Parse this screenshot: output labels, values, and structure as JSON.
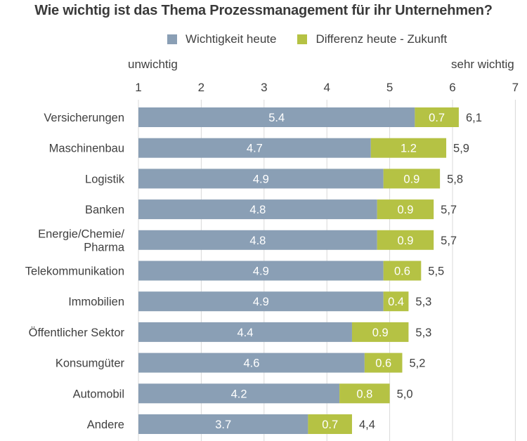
{
  "title": "Wie wichtig ist das Thema Prozessmanagement für ihr Unternehmen?",
  "legend": [
    {
      "label": "Wichtigkeit heute",
      "color": "#8a9fb5"
    },
    {
      "label": "Differenz heute - Zukunft",
      "color": "#b5c244"
    }
  ],
  "axis_end_labels": {
    "left": "unwichtig",
    "right": "sehr wichtig"
  },
  "chart_data": {
    "type": "bar",
    "orientation": "horizontal",
    "stacked": true,
    "title": "Wie wichtig ist das Thema Prozessmanagement für ihr Unternehmen?",
    "xlabel": "",
    "ylabel": "",
    "xlim": [
      1,
      7
    ],
    "xticks": [
      "1",
      "2",
      "3",
      "4",
      "5",
      "6",
      "7"
    ],
    "grid": true,
    "legend_position": "top",
    "categories": [
      "Versicherungen",
      "Maschinenbau",
      "Logistik",
      "Banken",
      "Energie/Chemie/\nPharma",
      "Telekommunikation",
      "Immobilien",
      "Öffentlicher Sektor",
      "Konsumgüter",
      "Automobil",
      "Andere"
    ],
    "series": [
      {
        "name": "Wichtigkeit heute",
        "color": "#8a9fb5",
        "values": [
          5.4,
          4.7,
          4.9,
          4.8,
          4.8,
          4.9,
          4.9,
          4.4,
          4.6,
          4.2,
          3.7
        ],
        "labels": [
          "5.4",
          "4.7",
          "4.9",
          "4.8",
          "4.8",
          "4.9",
          "4.9",
          "4.4",
          "4.6",
          "4.2",
          "3.7"
        ]
      },
      {
        "name": "Differenz heute - Zukunft",
        "color": "#b5c244",
        "values": [
          0.7,
          1.2,
          0.9,
          0.9,
          0.9,
          0.6,
          0.4,
          0.9,
          0.6,
          0.8,
          0.7
        ],
        "labels": [
          "0.7",
          "1.2",
          "0.9",
          "0.9",
          "0.9",
          "0.6",
          "0.4",
          "0.9",
          "0.6",
          "0.8",
          "0.7"
        ]
      }
    ],
    "totals": [
      6.1,
      5.9,
      5.8,
      5.7,
      5.7,
      5.5,
      5.3,
      5.3,
      5.2,
      5.0,
      4.4
    ],
    "total_labels": [
      "6,1",
      "5,9",
      "5,8",
      "5,7",
      "5,7",
      "5,5",
      "5,3",
      "5,3",
      "5,2",
      "5,0",
      "4,4"
    ]
  }
}
